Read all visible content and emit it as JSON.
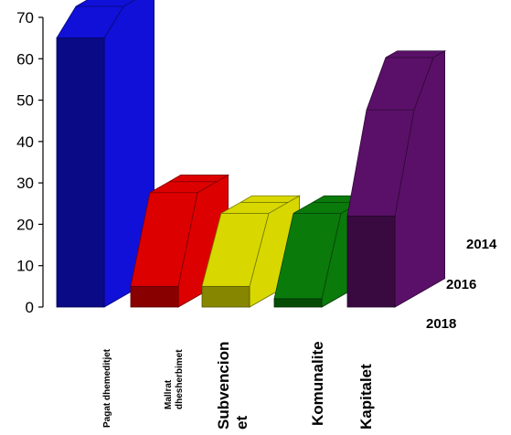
{
  "chart_data": {
    "type": "bar",
    "title": "",
    "xlabel": "",
    "ylabel": "",
    "ylim": [
      0,
      70
    ],
    "yticks": [
      0,
      10,
      20,
      30,
      40,
      50,
      60,
      70
    ],
    "categories": [
      {
        "lines": [
          "Pagat dhemeditjet"
        ]
      },
      {
        "lines": [
          "Mallrat",
          "dhesherbimet"
        ]
      },
      {
        "lines": [
          "Subvencion",
          "et"
        ]
      },
      {
        "lines": [
          "Komunalite"
        ]
      },
      {
        "lines": [
          "Kapitalet"
        ]
      }
    ],
    "series": [
      {
        "name": "2014",
        "values": [
          70,
          25,
          20,
          20,
          55
        ]
      },
      {
        "name": "2016",
        "values": [
          70,
          25,
          20,
          20,
          45
        ]
      },
      {
        "name": "2018",
        "values": [
          65,
          5,
          5,
          2,
          22
        ]
      }
    ],
    "colors": [
      "#1010d8",
      "#dd0000",
      "#d8d800",
      "#0a7a0a",
      "#5a1068"
    ],
    "grid": false
  }
}
